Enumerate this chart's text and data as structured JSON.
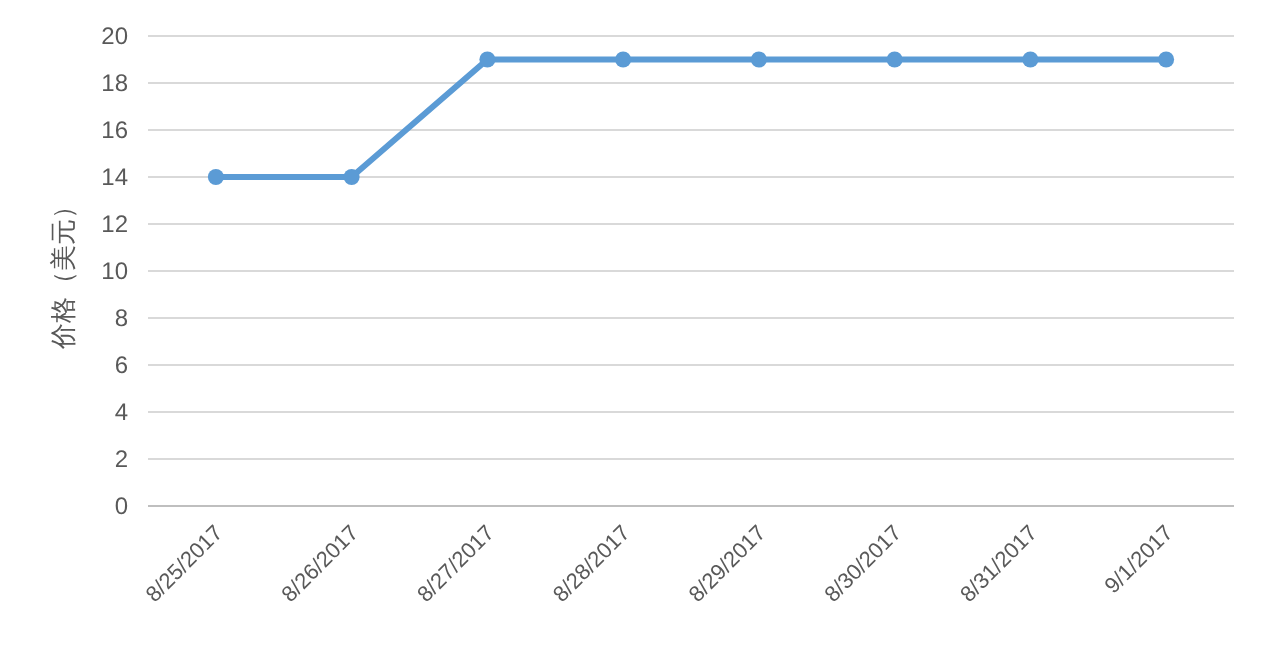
{
  "chart_data": {
    "type": "line",
    "ylabel": "价格（美元）",
    "categories": [
      "8/25/2017",
      "8/26/2017",
      "8/27/2017",
      "8/28/2017",
      "8/29/2017",
      "8/30/2017",
      "8/31/2017",
      "9/1/2017"
    ],
    "series": [
      {
        "color": "#5b9bd5",
        "values": [
          14,
          14,
          19,
          19,
          19,
          19,
          19,
          19
        ]
      }
    ],
    "ylim": [
      0,
      20
    ],
    "yticks": [
      0,
      2,
      4,
      6,
      8,
      10,
      12,
      14,
      16,
      18,
      20
    ],
    "grid": "y",
    "marker": "circle",
    "line_style": "solid"
  }
}
